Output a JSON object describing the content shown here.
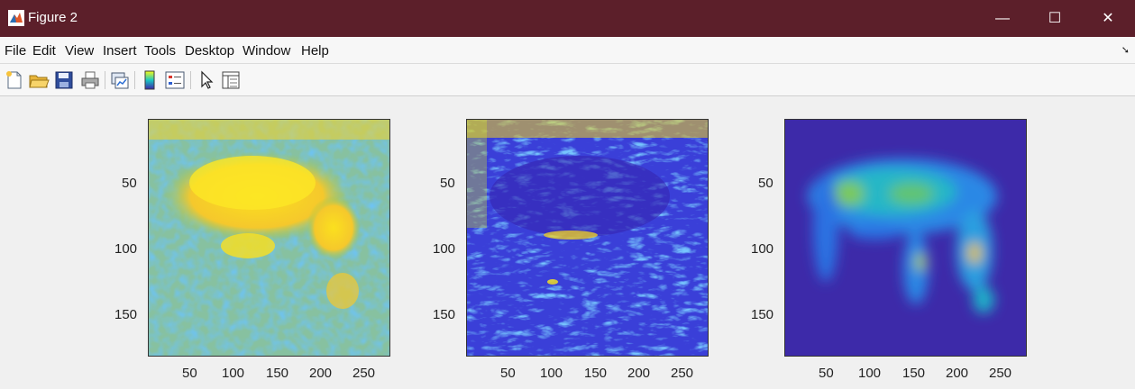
{
  "window": {
    "title": "Figure 2",
    "controls": {
      "minimize": "—",
      "maximize": "☐",
      "close": "✕"
    }
  },
  "menu": [
    "File",
    "Edit",
    "View",
    "Insert",
    "Tools",
    "Desktop",
    "Window",
    "Help"
  ],
  "toolbar": {
    "icons": [
      "new-figure-icon",
      "open-file-icon",
      "save-icon",
      "print-icon",
      "link-plot-icon",
      "insert-colorbar-icon",
      "insert-legend-icon",
      "edit-plot-pointer-icon",
      "property-inspector-icon"
    ]
  },
  "axes": {
    "xticks": [
      "50",
      "100",
      "150",
      "200",
      "250"
    ],
    "yticks": [
      "50",
      "100",
      "150"
    ]
  },
  "images": [
    {
      "name": "magnitude-image",
      "colormap": "parula",
      "scheme": "yellow-dominant"
    },
    {
      "name": "phase-image",
      "colormap": "parula",
      "scheme": "blue-dominant"
    },
    {
      "name": "reconstructed-image",
      "colormap": "parula",
      "scheme": "dark-blue-smooth"
    }
  ],
  "colors": {
    "titlebar": "#5c1f2a",
    "parula_dark": "#3e26a8",
    "parula_blue": "#2e87f7",
    "parula_cyan": "#1ac7c2",
    "parula_green": "#81cc59",
    "parula_yellow": "#f9fb15"
  }
}
